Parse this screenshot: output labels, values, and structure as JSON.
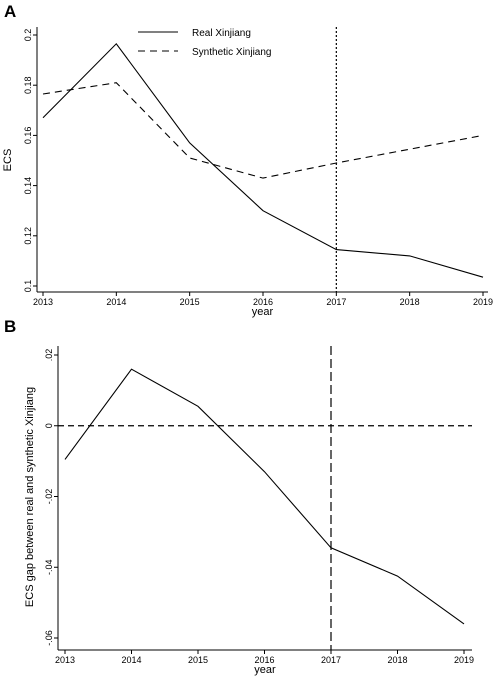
{
  "chart_data": [
    {
      "panel": "A",
      "type": "line",
      "xlabel": "year",
      "ylabel": "ECS",
      "x": [
        2013,
        2014,
        2015,
        2016,
        2017,
        2018,
        2019
      ],
      "xlim": [
        2013,
        2019
      ],
      "ylim": [
        0.1,
        0.2
      ],
      "yticks": [
        "0.1",
        "0.12",
        "0.14",
        "0.16",
        "0.18",
        "0.2"
      ],
      "xticks": [
        "2013",
        "2014",
        "2015",
        "2016",
        "2017",
        "2018",
        "2019"
      ],
      "vline": 2017,
      "legend_position": "top",
      "series": [
        {
          "name": "Real Xinjiang",
          "style": "solid",
          "values": [
            0.167,
            0.1965,
            0.157,
            0.13,
            0.1145,
            0.112,
            0.1035
          ]
        },
        {
          "name": "Synthetic Xinjiang",
          "style": "dashed",
          "values": [
            0.1765,
            0.181,
            0.151,
            0.143,
            0.149,
            0.1545,
            0.16
          ]
        }
      ]
    },
    {
      "panel": "B",
      "type": "line",
      "xlabel": "year",
      "ylabel": "ECS gap between real and synthetic Xinjiang",
      "x": [
        2013,
        2014,
        2015,
        2016,
        2017,
        2018,
        2019
      ],
      "xlim": [
        2013,
        2019
      ],
      "ylim": [
        -0.06,
        0.02
      ],
      "yticks": [
        "-.06",
        "-.04",
        "-.02",
        "0",
        ".02"
      ],
      "xticks": [
        "2013",
        "2014",
        "2015",
        "2016",
        "2017",
        "2018",
        "2019"
      ],
      "vline": 2017,
      "hline": 0,
      "series": [
        {
          "style": "solid",
          "values": [
            -0.0095,
            0.016,
            0.0055,
            -0.013,
            -0.0345,
            -0.0425,
            -0.056
          ]
        }
      ]
    }
  ]
}
